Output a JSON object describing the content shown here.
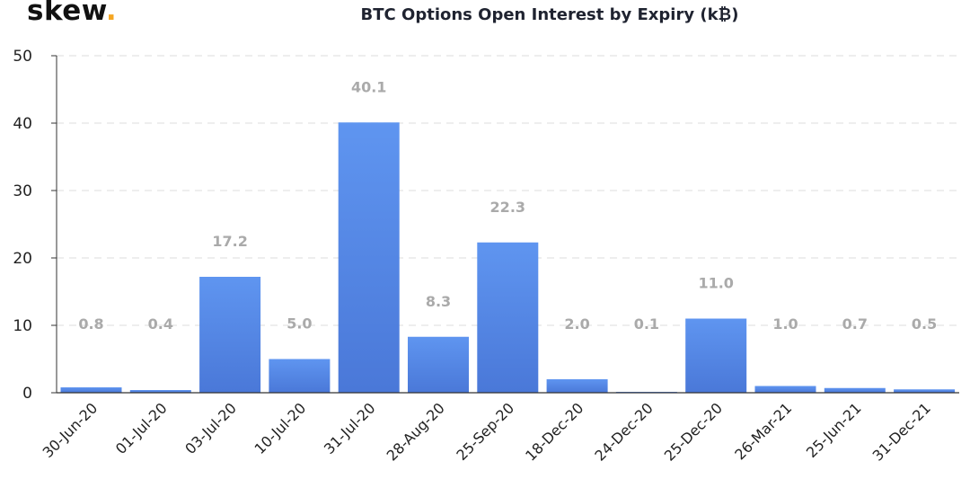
{
  "logo": {
    "text": "skew",
    "dot": "."
  },
  "chart_data": {
    "type": "bar",
    "title": "BTC Options Open Interest by Expiry (k₿)",
    "xlabel": "",
    "ylabel": "",
    "categories": [
      "30-Jun-20",
      "01-Jul-20",
      "03-Jul-20",
      "10-Jul-20",
      "31-Jul-20",
      "28-Aug-20",
      "25-Sep-20",
      "18-Dec-20",
      "24-Dec-20",
      "25-Dec-20",
      "26-Mar-21",
      "25-Jun-21",
      "31-Dec-21"
    ],
    "values": [
      0.8,
      0.4,
      17.2,
      5.0,
      40.1,
      8.3,
      22.3,
      2.0,
      0.1,
      11.0,
      1.0,
      0.7,
      0.5
    ],
    "data_labels": [
      "0.8",
      "0.4",
      "17.2",
      "5.0",
      "40.1",
      "8.3",
      "22.3",
      "2.0",
      "0.1",
      "11.0",
      "1.0",
      "0.7",
      "0.5"
    ],
    "ylim": [
      0,
      50
    ],
    "yticks": [
      0,
      10,
      20,
      30,
      40,
      50
    ],
    "grid": true,
    "legend": "none",
    "colors": {
      "bar_top": "#5f95f0",
      "bar_bottom": "#4a78d8",
      "label": "#aaaaaa",
      "grid": "#e3e3e3",
      "axis": "#333333",
      "logo_dot": "#f5a623"
    }
  }
}
